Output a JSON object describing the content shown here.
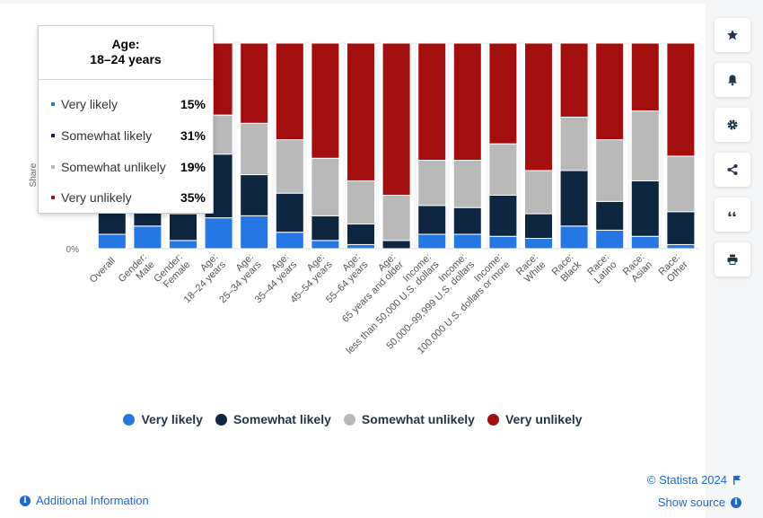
{
  "chart_data": {
    "type": "bar",
    "stacked": true,
    "percent": true,
    "categories": [
      "Overall",
      "Gender: Male",
      "Gender: Female",
      "Age: 18–24 years",
      "Age: 25–34 years",
      "Age: 35–44 years",
      "Age: 45–54 years",
      "Age: 55–64 years",
      "Age: 65 years and older",
      "Income: less than 50,000 U.S. dollars",
      "Income: 50,000–99,999 U.S. dollars",
      "Income: 100,000 U.S. dollars or more",
      "Race: White",
      "Race: Black",
      "Race: Latino",
      "Race: Asian",
      "Race: Other"
    ],
    "tick_lines": [
      [
        "Overall"
      ],
      [
        "Gender:",
        "Male"
      ],
      [
        "Gender:",
        "Female"
      ],
      [
        "Age:",
        "18–24 years"
      ],
      [
        "Age:",
        "25–34 years"
      ],
      [
        "Age:",
        "35–44 years"
      ],
      [
        "Age:",
        "45–54 years"
      ],
      [
        "Age:",
        "55–64 years"
      ],
      [
        "Age:",
        "65 years and older"
      ],
      [
        "Income:",
        "less than 50,000 U.S. dollars"
      ],
      [
        "Income:",
        "50,000–99,999 U.S. dollars"
      ],
      [
        "Income:",
        "100,000 U.S. dollars or more"
      ],
      [
        "Race:",
        "White"
      ],
      [
        "Race:",
        "Black"
      ],
      [
        "Race:",
        "Latino"
      ],
      [
        "Race:",
        "Asian"
      ],
      [
        "Race:",
        "Other"
      ]
    ],
    "series": [
      {
        "name": "Very likely",
        "color": "#2577e3",
        "values": [
          7,
          11,
          4,
          15,
          16,
          8,
          4,
          2,
          0,
          7,
          7,
          6,
          5,
          11,
          9,
          6,
          2
        ]
      },
      {
        "name": "Somewhat likely",
        "color": "#0f2640",
        "values": [
          15,
          15,
          13,
          31,
          20,
          19,
          12,
          10,
          4,
          14,
          13,
          20,
          12,
          27,
          14,
          27,
          16
        ]
      },
      {
        "name": "Somewhat unlikely",
        "color": "#b9b9b9",
        "values": [
          23,
          16,
          21,
          19,
          25,
          26,
          28,
          21,
          22,
          22,
          23,
          25,
          21,
          26,
          30,
          34,
          27
        ]
      },
      {
        "name": "Very unlikely",
        "color": "#a30e0e",
        "values": [
          55,
          58,
          62,
          35,
          39,
          47,
          56,
          67,
          74,
          57,
          57,
          49,
          62,
          36,
          47,
          33,
          55
        ]
      }
    ],
    "ylim": [
      0,
      100
    ],
    "y_tick_label": "0%",
    "ylabel": "Share",
    "grid": true,
    "legend": "bottom"
  },
  "tooltip": {
    "title_line1": "Age:",
    "title_line2": "18–24 years",
    "rows": [
      {
        "label": "Very likely",
        "value": "15%",
        "color": "#2577e3"
      },
      {
        "label": "Somewhat likely",
        "value": "31%",
        "color": "#0f2640"
      },
      {
        "label": "Somewhat unlikely",
        "value": "19%",
        "color": "#b9b9b9"
      },
      {
        "label": "Very unlikely",
        "value": "35%",
        "color": "#a30e0e"
      }
    ]
  },
  "legend": [
    {
      "label": "Very likely",
      "color": "#2577e3"
    },
    {
      "label": "Somewhat likely",
      "color": "#0f2640"
    },
    {
      "label": "Somewhat unlikely",
      "color": "#b9b9b9"
    },
    {
      "label": "Very unlikely",
      "color": "#a30e0e"
    }
  ],
  "toolbar": [
    {
      "icon": "star-icon",
      "name": "favorite-button"
    },
    {
      "icon": "bell-icon",
      "name": "notification-button"
    },
    {
      "icon": "gear-icon",
      "name": "settings-button"
    },
    {
      "icon": "share-icon",
      "name": "share-button"
    },
    {
      "icon": "quote-icon",
      "name": "cite-button"
    },
    {
      "icon": "print-icon",
      "name": "print-button"
    }
  ],
  "footer": {
    "additional_info": "Additional Information",
    "credit": "© Statista 2024",
    "show_source": "Show source"
  }
}
